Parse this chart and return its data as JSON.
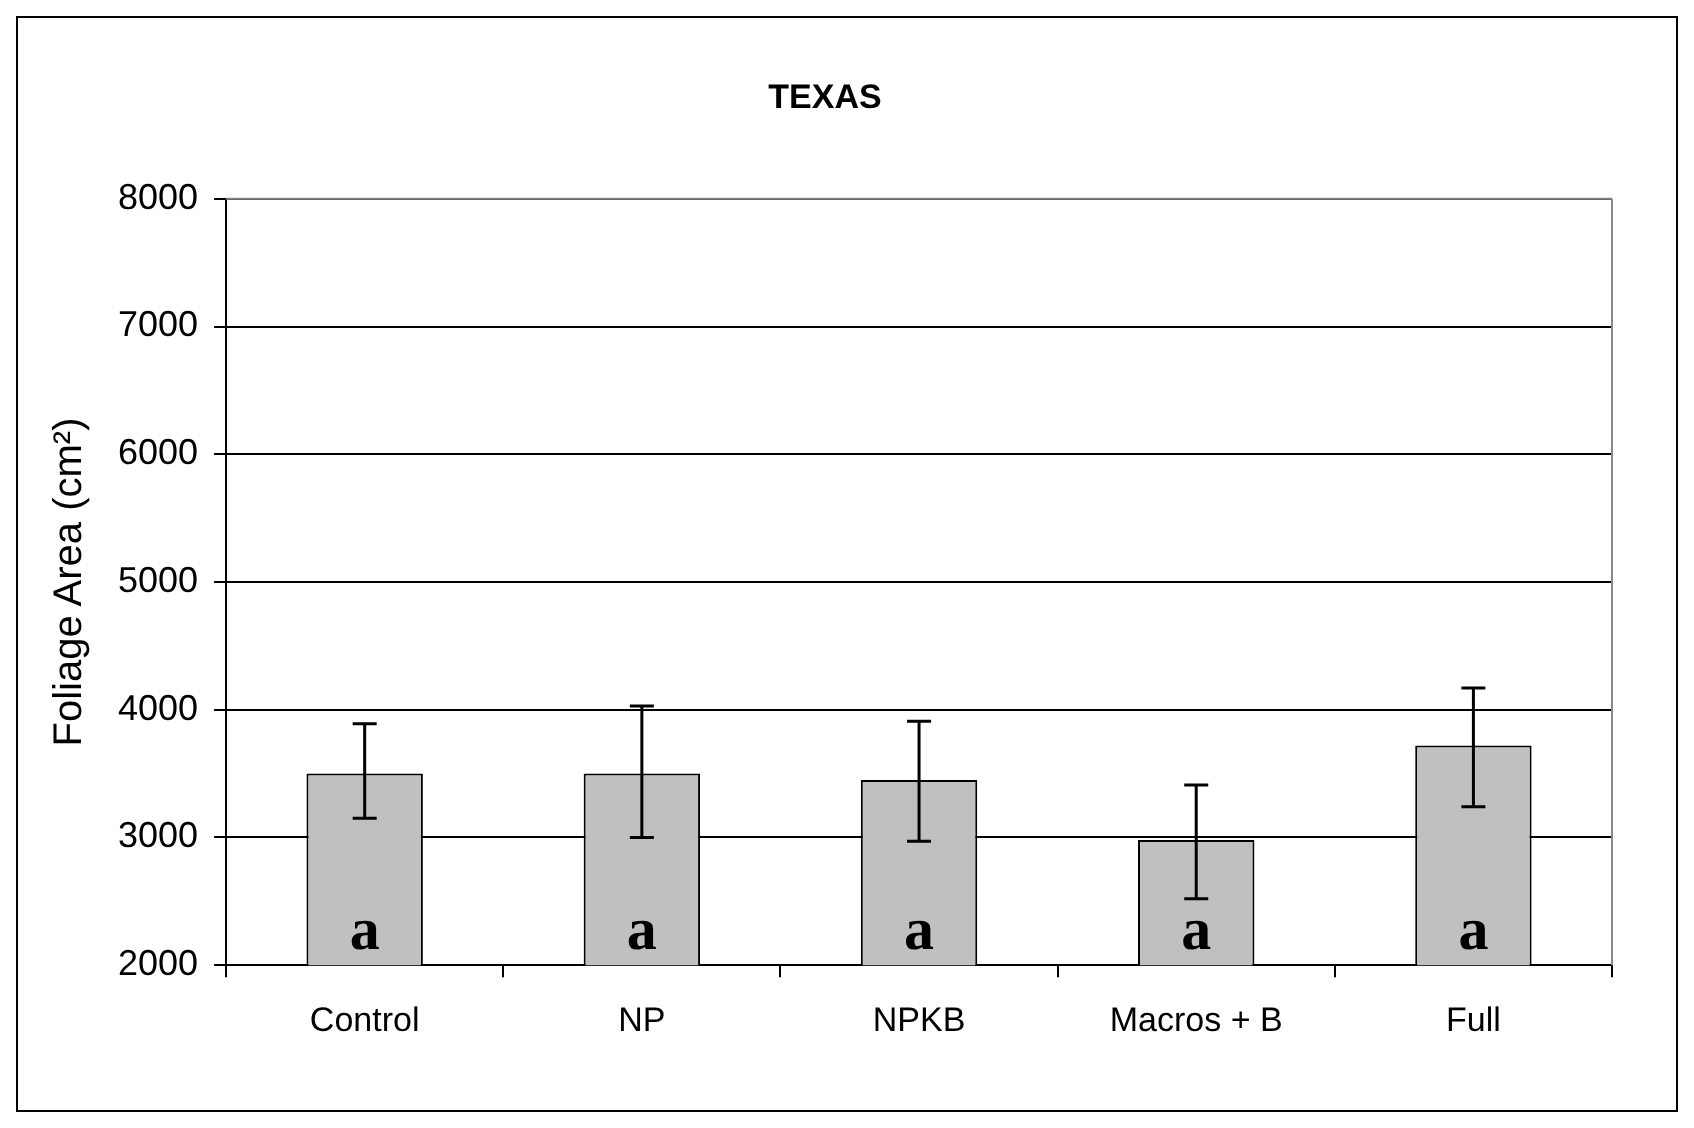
{
  "chart_data": {
    "type": "bar",
    "title": "TEXAS",
    "ylabel": "Foliage Area (cm²)",
    "categories": [
      "Control",
      "NP",
      "NPKB",
      "Macros + B",
      "Full"
    ],
    "values": [
      3500,
      3500,
      3450,
      2980,
      3720
    ],
    "errors": [
      [
        3150,
        3890
      ],
      [
        3000,
        4030
      ],
      [
        2970,
        3910
      ],
      [
        2520,
        3410
      ],
      [
        3240,
        4170
      ]
    ],
    "color": "#c0c0c0",
    "ylim": [
      2000,
      8000
    ],
    "yticks": [
      2000,
      3000,
      4000,
      5000,
      6000,
      7000,
      8000
    ],
    "grid": "y",
    "legend": false,
    "annotations": [
      "a",
      "a",
      "a",
      "a",
      "a"
    ]
  }
}
